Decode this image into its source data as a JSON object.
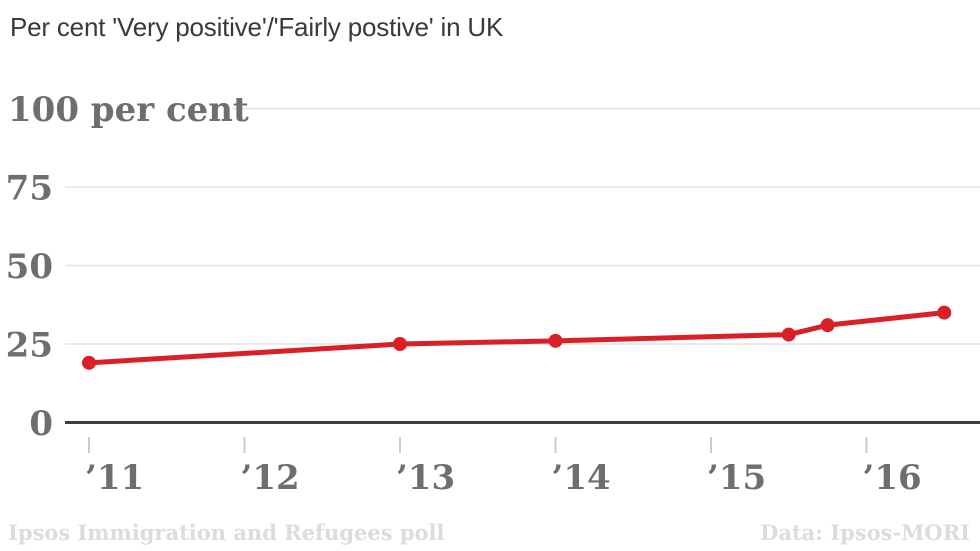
{
  "chart_data": {
    "type": "line",
    "title": "Per cent 'Very positive'/'Fairly postive' in UK",
    "xlabel": "",
    "ylabel": "per cent",
    "xlim": [
      2010.85,
      2016.73
    ],
    "ylim": [
      0,
      100
    ],
    "grid": true,
    "legend": "none",
    "series": [
      {
        "name": "Very positive / Fairly positive in UK",
        "points": [
          {
            "x": 2011.0,
            "y": 19
          },
          {
            "x": 2013.0,
            "y": 25
          },
          {
            "x": 2014.0,
            "y": 26
          },
          {
            "x": 2015.5,
            "y": 28
          },
          {
            "x": 2015.75,
            "y": 31
          },
          {
            "x": 2016.5,
            "y": 35
          }
        ]
      }
    ],
    "x_ticks": [
      {
        "value": 2011,
        "label": "’11"
      },
      {
        "value": 2012,
        "label": "’12"
      },
      {
        "value": 2013,
        "label": "’13"
      },
      {
        "value": 2014,
        "label": "’14"
      },
      {
        "value": 2015,
        "label": "’15"
      },
      {
        "value": 2016,
        "label": "’16"
      }
    ],
    "y_ticks": [
      {
        "value": 0,
        "label": "0"
      },
      {
        "value": 25,
        "label": "25"
      },
      {
        "value": 50,
        "label": "50"
      },
      {
        "value": 75,
        "label": "75"
      },
      {
        "value": 100,
        "label": "100 per cent"
      }
    ],
    "colors": {
      "line": "#da1f26",
      "point": "#da1f26",
      "grid": "#e3e3e3",
      "zero_line": "#3f3f3f",
      "tick": "#cccccc",
      "axis_label": "#6e6e6e",
      "title": "#3a3a3a",
      "footer": "#dcdcdc",
      "background": "#ffffff"
    }
  },
  "footer": {
    "left": "Ipsos Immigration and Refugees poll",
    "right": "Data: Ipsos-MORI"
  }
}
